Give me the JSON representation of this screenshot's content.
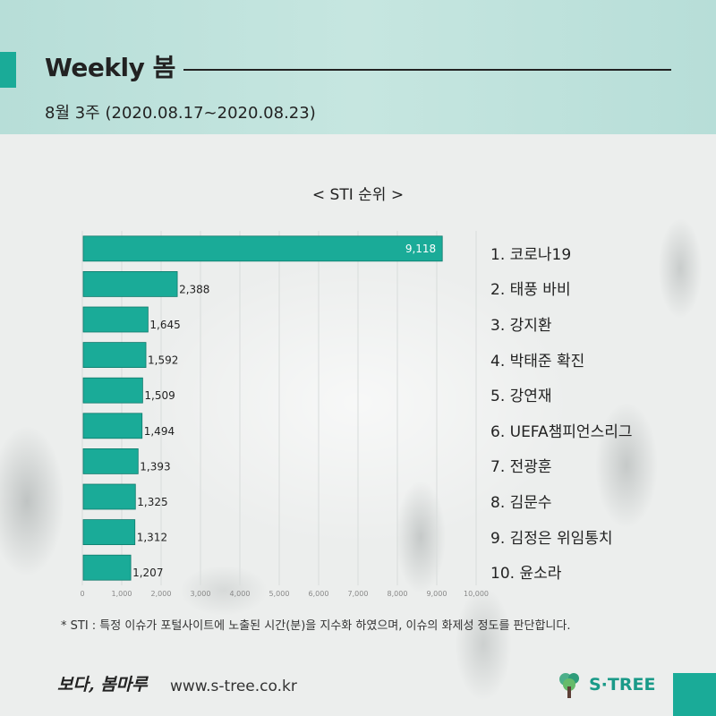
{
  "header": {
    "title": "Weekly 봄",
    "subtitle": "8월 3주 (2020.08.17~2020.08.23)"
  },
  "chart_data": {
    "type": "bar",
    "orientation": "horizontal",
    "title": "< STI 순위 >",
    "categories": [
      "코로나19",
      "태풍 바비",
      "강지환",
      "박태준 확진",
      "강연재",
      "UEFA챔피언스리그",
      "전광훈",
      "김문수",
      "김정은 위임통치",
      "윤소라"
    ],
    "values": [
      9118,
      2388,
      1645,
      1592,
      1509,
      1494,
      1393,
      1325,
      1312,
      1207
    ],
    "value_labels": [
      "9,118",
      "2,388",
      "1,645",
      "1,592",
      "1,509",
      "1,494",
      "1,393",
      "1,325",
      "1,312",
      "1,207"
    ],
    "ranks": [
      "1. 코로나19",
      "2. 태풍 바비",
      "3. 강지환",
      "4. 박태준 확진",
      "5. 강연재",
      "6. UEFA챔피언스리그",
      "7. 전광훈",
      "8. 김문수",
      "9. 김정은 위임통치",
      "10. 윤소라"
    ],
    "xlim": [
      0,
      10000
    ],
    "xticks": [
      0,
      1000,
      2000,
      3000,
      4000,
      5000,
      6000,
      7000,
      8000,
      9000,
      10000
    ],
    "xtick_labels": [
      "0",
      "1,000",
      "2,000",
      "3,000",
      "4,000",
      "5,000",
      "6,000",
      "7,000",
      "8,000",
      "9,000",
      "10,000"
    ],
    "grid": true,
    "bar_color": "#1aab98"
  },
  "footnote": "* STI : 특정 이슈가 포털사이트에 노출된 시간(분)을 지수화 하였으며, 이슈의 화제성 정도를 판단합니다.",
  "footer": {
    "brand": "보다, 봄마루",
    "url": "www.s-tree.co.kr",
    "logo_text": "S·TREE",
    "logo_icon": "tree-icon"
  },
  "colors": {
    "accent": "#1aab98",
    "header_bg": "#c0e3dd"
  }
}
